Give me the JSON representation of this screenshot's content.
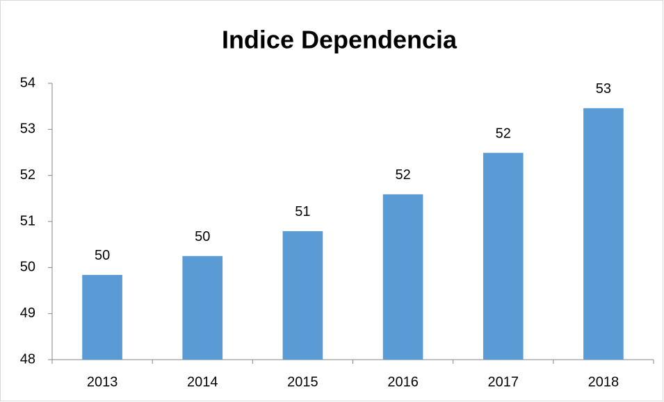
{
  "chart_data": {
    "type": "bar",
    "title": "Indice Dependencia",
    "categories": [
      "2013",
      "2014",
      "2015",
      "2016",
      "2017",
      "2018"
    ],
    "values": [
      49.84,
      50.25,
      50.79,
      51.59,
      52.49,
      53.46
    ],
    "value_labels": [
      "50",
      "50",
      "51",
      "52",
      "52",
      "53"
    ],
    "color": "#5b9bd5",
    "ylim": [
      48,
      54
    ],
    "yticks": [
      48,
      49,
      50,
      51,
      52,
      53,
      54
    ],
    "grid": false
  }
}
